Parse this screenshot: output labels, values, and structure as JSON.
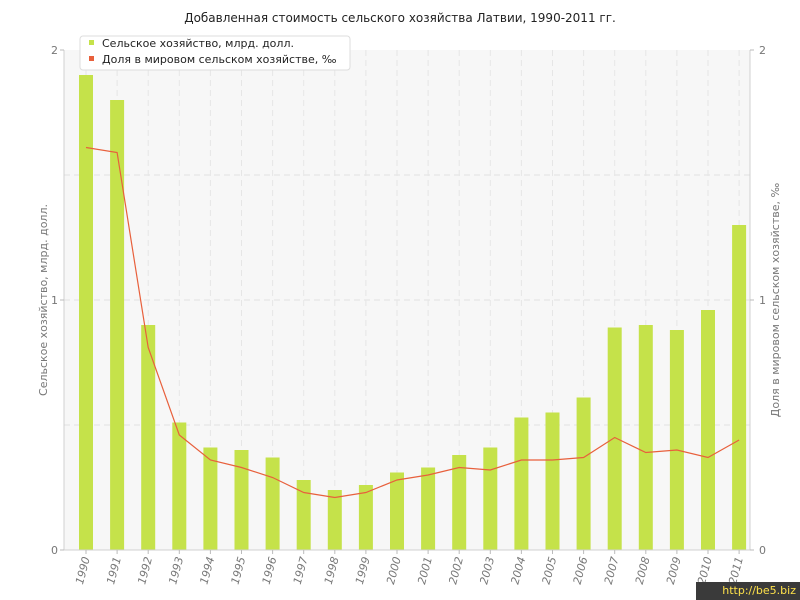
{
  "chart_data": {
    "type": "bar",
    "title": "Добавленная стоимость сельского хозяйства Латвии, 1990-2011 гг.",
    "categories": [
      "1990",
      "1991",
      "1992",
      "1993",
      "1994",
      "1995",
      "1996",
      "1997",
      "1998",
      "1999",
      "2000",
      "2001",
      "2002",
      "2003",
      "2004",
      "2005",
      "2006",
      "2007",
      "2008",
      "2009",
      "2010",
      "2011"
    ],
    "series": [
      {
        "name": "Сельское хозяйство, млрд. долл.",
        "kind": "bar",
        "color": "#c5e24a",
        "axis": "left",
        "values": [
          1.9,
          1.8,
          0.9,
          0.51,
          0.41,
          0.4,
          0.37,
          0.28,
          0.24,
          0.26,
          0.31,
          0.33,
          0.38,
          0.41,
          0.53,
          0.55,
          0.61,
          0.89,
          0.9,
          0.88,
          0.96,
          1.3
        ]
      },
      {
        "name": "Доля в мировом сельском хозяйстве, ‰",
        "kind": "line",
        "color": "#e8603c",
        "axis": "right",
        "values": [
          1.61,
          1.59,
          0.81,
          0.46,
          0.36,
          0.33,
          0.29,
          0.23,
          0.21,
          0.23,
          0.28,
          0.3,
          0.33,
          0.32,
          0.36,
          0.36,
          0.37,
          0.45,
          0.39,
          0.4,
          0.37,
          0.44
        ]
      }
    ],
    "ylabel": "Сельское хозяйство, млрд. долл.",
    "y2label": "Доля в мировом сельском хозяйстве, ‰",
    "ylim": [
      0,
      2
    ],
    "y2lim": [
      0,
      2
    ],
    "yticks": [
      "0",
      "1",
      "2"
    ],
    "y2ticks": [
      "0",
      "1",
      "2"
    ],
    "grid": true,
    "legend_position": "top-left"
  },
  "watermark": "http://be5.biz"
}
